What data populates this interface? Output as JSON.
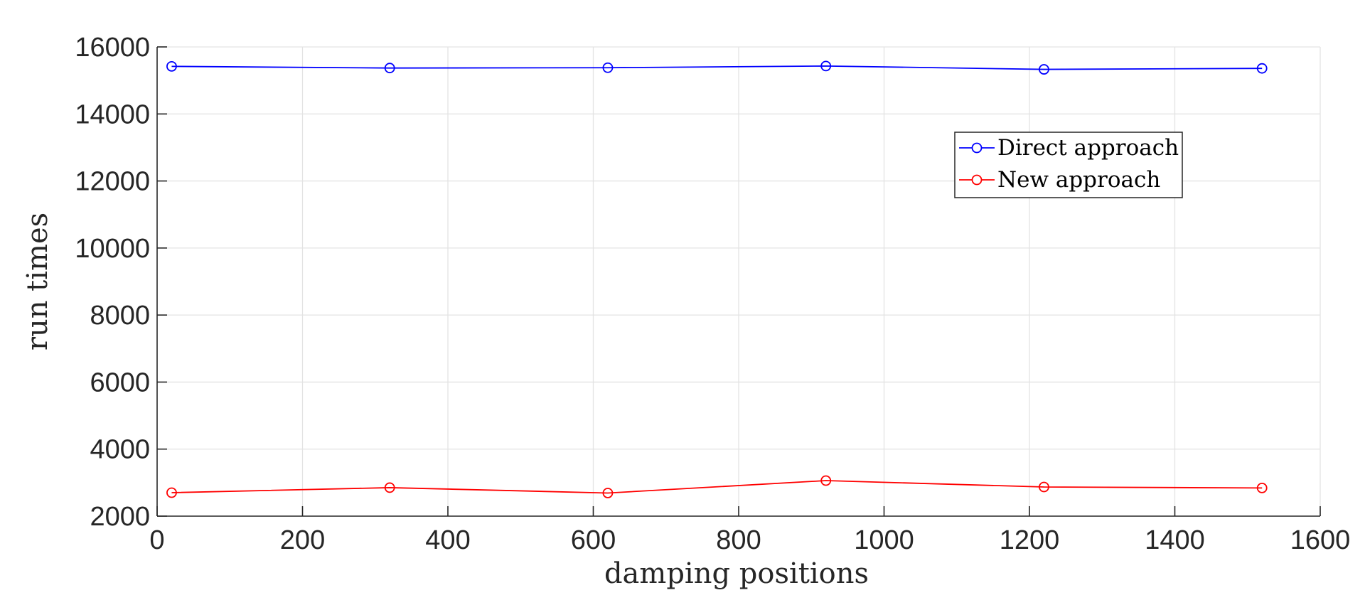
{
  "chart_data": {
    "type": "line",
    "title": "",
    "xlabel": "damping positions",
    "ylabel": "run times",
    "xlim": [
      0,
      1600
    ],
    "ylim": [
      2000,
      16000
    ],
    "xticks": [
      0,
      200,
      400,
      600,
      800,
      1000,
      1200,
      1400,
      1600
    ],
    "yticks": [
      2000,
      4000,
      6000,
      8000,
      10000,
      12000,
      14000,
      16000
    ],
    "grid": true,
    "legend_position": "upper-right",
    "x": [
      20,
      320,
      620,
      920,
      1220,
      1520
    ],
    "series": [
      {
        "name": "Direct approach",
        "color": "#0000ff",
        "marker": "circle",
        "values": [
          15420,
          15370,
          15380,
          15430,
          15330,
          15360
        ]
      },
      {
        "name": "New approach",
        "color": "#ff0000",
        "marker": "circle",
        "values": [
          2700,
          2850,
          2690,
          3060,
          2870,
          2840
        ]
      }
    ]
  }
}
